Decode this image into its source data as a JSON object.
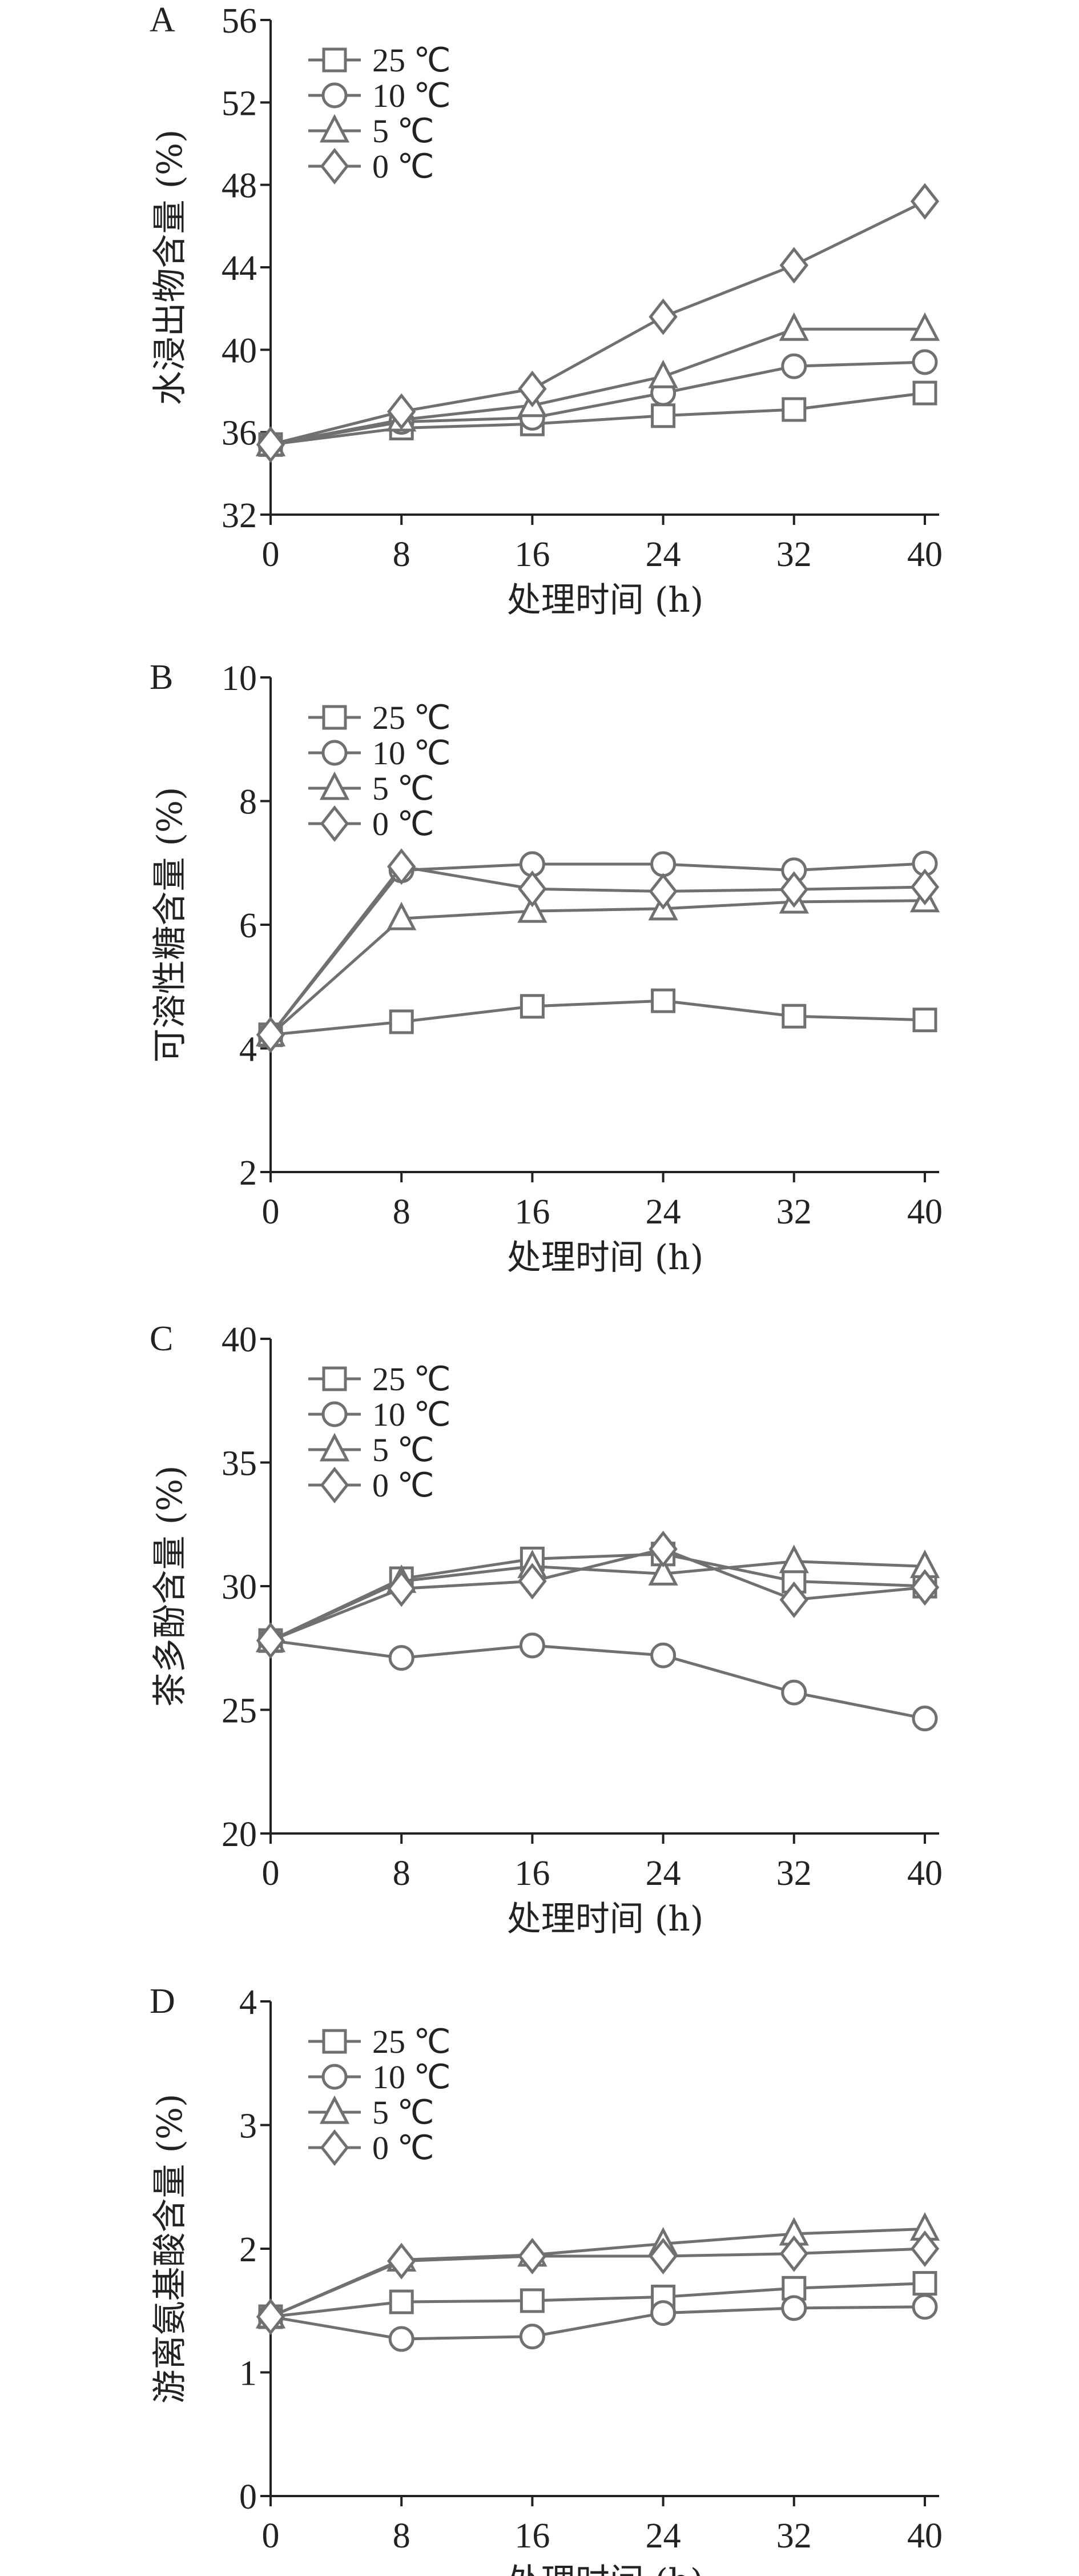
{
  "chart_data": [
    {
      "type": "line",
      "panel": "A",
      "ylabel": "水浸出物含量 (%)",
      "xlabel": "处理时间 (h)",
      "x": [
        0,
        8,
        16,
        24,
        32,
        40
      ],
      "xticks": [
        "0",
        "8",
        "16",
        "24",
        "32",
        "40"
      ],
      "ylim": [
        32,
        56
      ],
      "yticks": [
        "32",
        "36",
        "40",
        "44",
        "48",
        "52",
        "56"
      ],
      "legend": "top-left",
      "series": [
        {
          "name": "25 ℃",
          "marker": "square",
          "values": [
            35.4,
            36.2,
            36.4,
            36.8,
            37.1,
            37.9
          ]
        },
        {
          "name": "10 ℃",
          "marker": "circle",
          "values": [
            35.4,
            36.5,
            36.7,
            37.9,
            39.2,
            39.4
          ]
        },
        {
          "name": "5 ℃",
          "marker": "triangle",
          "values": [
            35.4,
            36.6,
            37.3,
            38.7,
            41.0,
            41.0
          ]
        },
        {
          "name": "0 ℃",
          "marker": "diamond",
          "values": [
            35.4,
            37.0,
            38.1,
            41.6,
            44.1,
            47.2
          ]
        }
      ]
    },
    {
      "type": "line",
      "panel": "B",
      "ylabel": "可溶性糖含量 (%)",
      "xlabel": "处理时间 (h)",
      "x": [
        0,
        8,
        16,
        24,
        32,
        40
      ],
      "xticks": [
        "0",
        "8",
        "16",
        "24",
        "32",
        "40"
      ],
      "ylim": [
        2,
        10
      ],
      "yticks": [
        "2",
        "4",
        "6",
        "8",
        "10"
      ],
      "legend": "top-left",
      "series": [
        {
          "name": "25 ℃",
          "marker": "square",
          "values": [
            4.22,
            4.43,
            4.68,
            4.77,
            4.52,
            4.46
          ]
        },
        {
          "name": "10 ℃",
          "marker": "circle",
          "values": [
            4.22,
            6.88,
            6.98,
            6.98,
            6.88,
            6.99
          ]
        },
        {
          "name": "5 ℃",
          "marker": "triangle",
          "values": [
            4.22,
            6.1,
            6.22,
            6.26,
            6.37,
            6.39
          ]
        },
        {
          "name": "0 ℃",
          "marker": "diamond",
          "values": [
            4.22,
            6.94,
            6.58,
            6.54,
            6.57,
            6.61
          ]
        }
      ]
    },
    {
      "type": "line",
      "panel": "C",
      "ylabel": "茶多酚含量 (%)",
      "xlabel": "处理时间 (h)",
      "x": [
        0,
        8,
        16,
        24,
        32,
        40
      ],
      "xticks": [
        "0",
        "8",
        "16",
        "24",
        "32",
        "40"
      ],
      "ylim": [
        20,
        40
      ],
      "yticks": [
        "20",
        "25",
        "30",
        "35",
        "40"
      ],
      "legend": "top-left",
      "series": [
        {
          "name": "25 ℃",
          "marker": "square",
          "values": [
            27.8,
            30.3,
            31.1,
            31.3,
            30.2,
            30.0
          ]
        },
        {
          "name": "10 ℃",
          "marker": "circle",
          "values": [
            27.8,
            27.1,
            27.6,
            27.2,
            25.7,
            24.65
          ]
        },
        {
          "name": "5 ℃",
          "marker": "triangle",
          "values": [
            27.8,
            30.2,
            30.8,
            30.5,
            31.0,
            30.8
          ]
        },
        {
          "name": "0 ℃",
          "marker": "diamond",
          "values": [
            27.8,
            29.9,
            30.2,
            31.5,
            29.45,
            29.95
          ]
        }
      ]
    },
    {
      "type": "line",
      "panel": "D",
      "ylabel": "游离氨基酸含量 (%)",
      "xlabel": "处理时间 (h)",
      "x": [
        0,
        8,
        16,
        24,
        32,
        40
      ],
      "xticks": [
        "0",
        "8",
        "16",
        "24",
        "32",
        "40"
      ],
      "ylim": [
        0,
        4
      ],
      "yticks": [
        "0",
        "1",
        "2",
        "3",
        "4"
      ],
      "legend": "top-left",
      "series": [
        {
          "name": "25 ℃",
          "marker": "square",
          "values": [
            1.45,
            1.57,
            1.58,
            1.61,
            1.68,
            1.72
          ]
        },
        {
          "name": "10 ℃",
          "marker": "circle",
          "values": [
            1.45,
            1.27,
            1.29,
            1.48,
            1.52,
            1.53
          ]
        },
        {
          "name": "5 ℃",
          "marker": "triangle",
          "values": [
            1.45,
            1.91,
            1.95,
            2.04,
            2.12,
            2.16
          ]
        },
        {
          "name": "0 ℃",
          "marker": "diamond",
          "values": [
            1.45,
            1.9,
            1.94,
            1.94,
            1.96,
            2.0
          ]
        }
      ]
    }
  ],
  "colors": {
    "series": "#707070",
    "axis": "#222222"
  }
}
